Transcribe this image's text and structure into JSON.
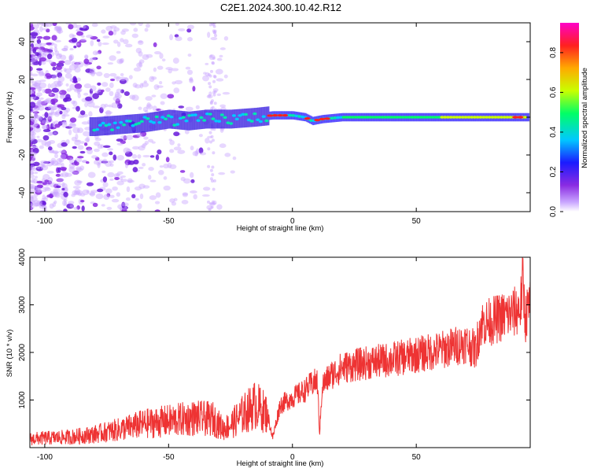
{
  "title": "C2E1.2024.300.10.42.R12",
  "chart_data": [
    {
      "type": "heatmap",
      "xlabel": "Height of straight line (km)",
      "ylabel": "Frequency (Hz)",
      "xlim": [
        -106,
        96
      ],
      "ylim": [
        -50,
        50
      ],
      "x_ticks": [
        -100,
        -50,
        0,
        50
      ],
      "x_tick_labels": [
        "-100",
        "-50",
        "0",
        "50"
      ],
      "y_ticks": [
        -40,
        -20,
        0,
        20,
        40
      ],
      "y_tick_labels": [
        "-40",
        "-20",
        "0",
        "20",
        "40"
      ],
      "ridge": [
        [
          -80,
          -5
        ],
        [
          -70,
          -4
        ],
        [
          -60,
          -3
        ],
        [
          -50,
          -1
        ],
        [
          -42,
          -2
        ],
        [
          -35,
          -1
        ],
        [
          -25,
          -1
        ],
        [
          -15,
          0
        ],
        [
          -8,
          1
        ],
        [
          0,
          1
        ],
        [
          5,
          0
        ],
        [
          8,
          -2
        ],
        [
          12,
          -1
        ],
        [
          20,
          0
        ],
        [
          40,
          0
        ],
        [
          60,
          0
        ],
        [
          80,
          0
        ],
        [
          95,
          0
        ]
      ],
      "colorbar": {
        "label": "Normalized spectral amplitude",
        "range": [
          0,
          0.95
        ],
        "ticks": [
          0.0,
          0.2,
          0.4,
          0.6,
          0.8
        ],
        "tick_labels": [
          "0.0",
          "0.2",
          "0.4",
          "0.6",
          "0.8"
        ],
        "colors": [
          "#ffffff",
          "#c9a6ff",
          "#8a2be2",
          "#1b1bff",
          "#00c8ff",
          "#00ff66",
          "#c8ff00",
          "#ffaa00",
          "#ff2020",
          "#ff00c8"
        ]
      }
    },
    {
      "type": "line",
      "xlabel": "Height of straight line (km)",
      "ylabel": "SNR (10 * v/v)",
      "xlim": [
        -106,
        96
      ],
      "ylim": [
        0,
        4000
      ],
      "x_ticks": [
        -100,
        -50,
        0,
        50
      ],
      "x_tick_labels": [
        "-100",
        "-50",
        "0",
        "50"
      ],
      "y_ticks": [
        1000,
        2000,
        3000,
        4000
      ],
      "y_tick_labels": [
        "1000",
        "2000",
        "3000",
        "4000"
      ],
      "series": [
        {
          "color": "#ee3333",
          "x": [
            -106,
            -100,
            -90,
            -80,
            -70,
            -60,
            -50,
            -40,
            -32,
            -28,
            -25,
            -20,
            -15,
            -10,
            -8,
            -5,
            0,
            5,
            8,
            10,
            11,
            12,
            15,
            20,
            30,
            40,
            50,
            60,
            70,
            74,
            76,
            80,
            85,
            90,
            92,
            93,
            94,
            95,
            96
          ],
          "y": [
            180,
            200,
            220,
            280,
            380,
            500,
            560,
            620,
            600,
            400,
            480,
            700,
            900,
            700,
            200,
            900,
            1050,
            1200,
            1350,
            1400,
            300,
            1300,
            1500,
            1680,
            1780,
            1850,
            1950,
            2050,
            2200,
            2050,
            2600,
            2650,
            2750,
            2850,
            2950,
            3500,
            2700,
            2900,
            3000
          ]
        }
      ]
    }
  ]
}
